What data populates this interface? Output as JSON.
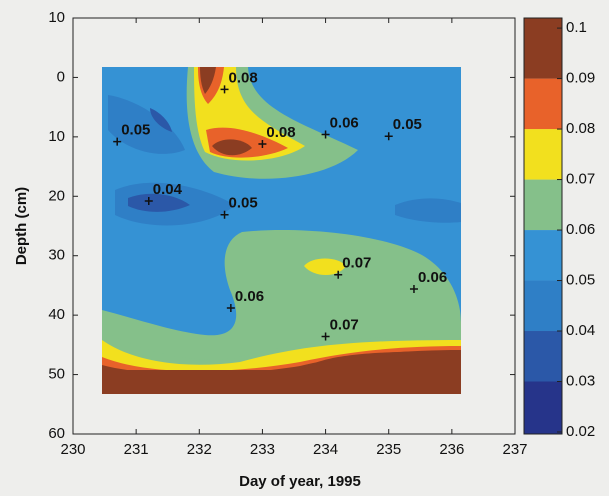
{
  "chart_data": {
    "type": "contour",
    "xlabel": "Day of year, 1995",
    "ylabel": "Depth  (cm)",
    "xlim": [
      230,
      237
    ],
    "xticks": [
      230,
      231,
      232,
      233,
      234,
      235,
      236,
      237
    ],
    "ylim": [
      -10,
      60
    ],
    "yticks": [
      {
        "value": -10,
        "label": "10"
      },
      0,
      10,
      20,
      30,
      40,
      50,
      60
    ],
    "y_inverted": true,
    "points": {
      "x": [
        230.7,
        231.2,
        232.4,
        233.0,
        234.0,
        235.0,
        232.4,
        234.2,
        235.4,
        232.5,
        234.0
      ],
      "y": [
        10.8,
        20.8,
        2.0,
        11.2,
        9.6,
        9.9,
        23.1,
        33.2,
        35.6,
        38.8,
        43.6
      ],
      "values": [
        0.05,
        0.04,
        0.08,
        0.08,
        0.06,
        0.05,
        0.05,
        0.07,
        0.06,
        0.06,
        0.07
      ]
    },
    "colorbar": {
      "levels": [
        0.02,
        0.03,
        0.04,
        0.05,
        0.06,
        0.07,
        0.08,
        0.09,
        0.1
      ],
      "colors": [
        "#26348a",
        "#2b58a8",
        "#2f7fc6",
        "#3592d4",
        "#85c08a",
        "#f2e01e",
        "#e8622a",
        "#8b3d22"
      ],
      "lim": [
        0.0196,
        0.102
      ]
    }
  }
}
